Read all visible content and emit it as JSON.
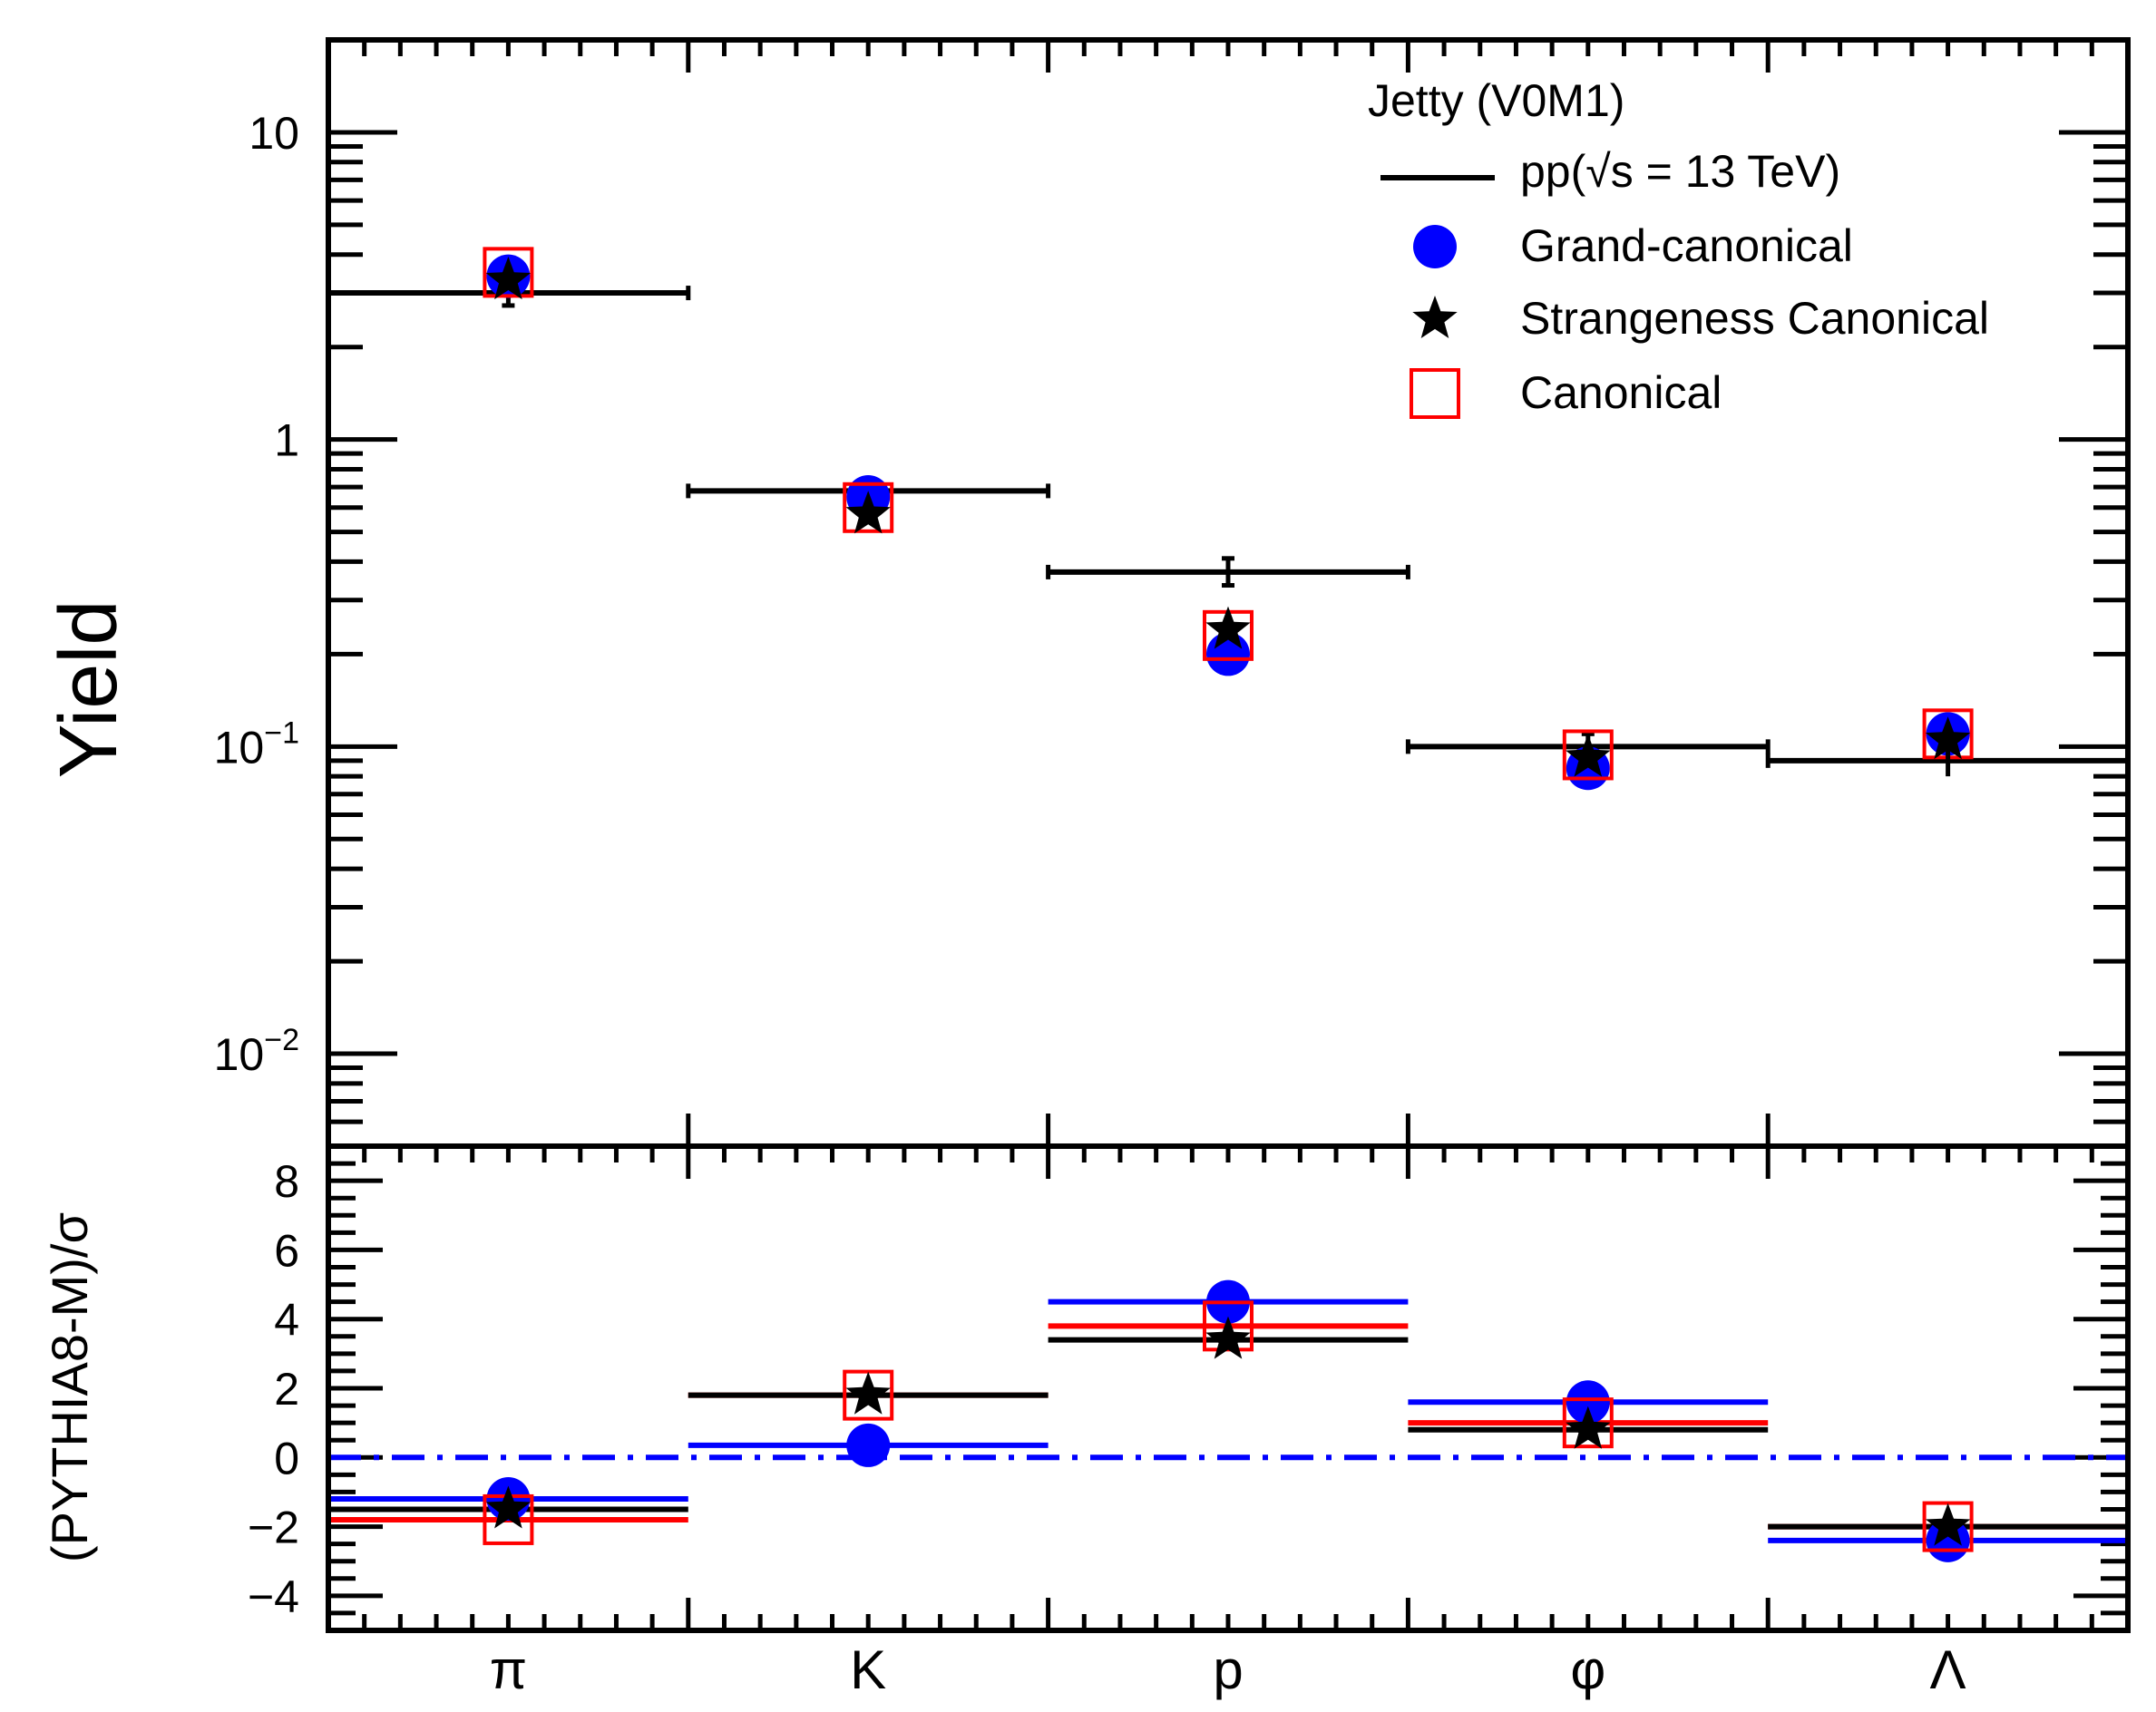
{
  "colors": {
    "data": "#000000",
    "grand_canonical": "#0000ff",
    "strangeness_canonical": "#000000",
    "canonical": "#ff0000",
    "zero_line": "#0000ff"
  },
  "chart_data": [
    {
      "type": "scatter",
      "panel": "top",
      "yscale": "log",
      "ylabel": "Yield",
      "ylim": [
        0.005,
        20
      ],
      "yticks": [
        {
          "value": 10,
          "base": "10",
          "exp": ""
        },
        {
          "value": 1,
          "base": "1",
          "exp": ""
        },
        {
          "value": 0.1,
          "base": "10",
          "exp": "−1"
        },
        {
          "value": 0.01,
          "base": "10",
          "exp": "−2"
        }
      ],
      "categories": [
        "π",
        "K",
        "p",
        "φ",
        "Λ"
      ],
      "legend": {
        "title": "Jetty (V0M1)",
        "entries": [
          {
            "key": "data",
            "label": "pp(√s = 13 TeV)",
            "marker": "line"
          },
          {
            "key": "grand_canonical",
            "label": "Grand-canonical",
            "marker": "circle"
          },
          {
            "key": "strangeness_canonical",
            "label": "Strangeness Canonical",
            "marker": "star"
          },
          {
            "key": "canonical",
            "label": "Canonical",
            "marker": "open-square"
          }
        ]
      },
      "series": [
        {
          "key": "data",
          "name": "pp(√s = 13 TeV)",
          "values": [
            3.0,
            0.68,
            0.37,
            0.1,
            0.09
          ],
          "err": [
            [
              0.27,
              0
            ],
            [
              0.06,
              0.06
            ],
            [
              0.035,
              0.04
            ],
            [
              0,
              0.01
            ],
            [
              0,
              0
            ]
          ]
        },
        {
          "key": "grand_canonical",
          "name": "Grand-canonical",
          "values": [
            3.4,
            0.65,
            0.2,
            0.085,
            0.11
          ]
        },
        {
          "key": "strangeness_canonical",
          "name": "Strangeness Canonical",
          "values": [
            3.3,
            0.57,
            0.24,
            0.092,
            0.105
          ],
          "err": [
            [
              0,
              0
            ],
            [
              0,
              0
            ],
            [
              0,
              0
            ],
            [
              0,
              0
            ],
            [
              0.025,
              0.01
            ]
          ]
        },
        {
          "key": "canonical",
          "name": "Canonical",
          "values": [
            3.5,
            0.6,
            0.23,
            0.094,
            0.11
          ]
        }
      ]
    },
    {
      "type": "scatter",
      "panel": "bottom",
      "ylabel": "(PYTHIA8-M)/σ",
      "ylim": [
        -5,
        9
      ],
      "yticks": [
        8,
        6,
        4,
        2,
        0,
        -2,
        -4
      ],
      "ytick_labels": [
        "8",
        "6",
        "4",
        "2",
        "0",
        "−2",
        "−4"
      ],
      "reference_line": 0,
      "categories": [
        "π",
        "K",
        "p",
        "φ",
        "Λ"
      ],
      "series": [
        {
          "key": "grand_canonical",
          "name": "Grand-canonical",
          "values": [
            -1.2,
            0.35,
            4.5,
            1.6,
            -2.4
          ]
        },
        {
          "key": "strangeness_canonical",
          "name": "Strangeness Canonical",
          "values": [
            -1.5,
            1.8,
            3.4,
            0.8,
            -2.0
          ]
        },
        {
          "key": "canonical",
          "name": "Canonical",
          "values": [
            -1.8,
            1.8,
            3.8,
            1.0,
            -2.0
          ]
        }
      ]
    }
  ]
}
